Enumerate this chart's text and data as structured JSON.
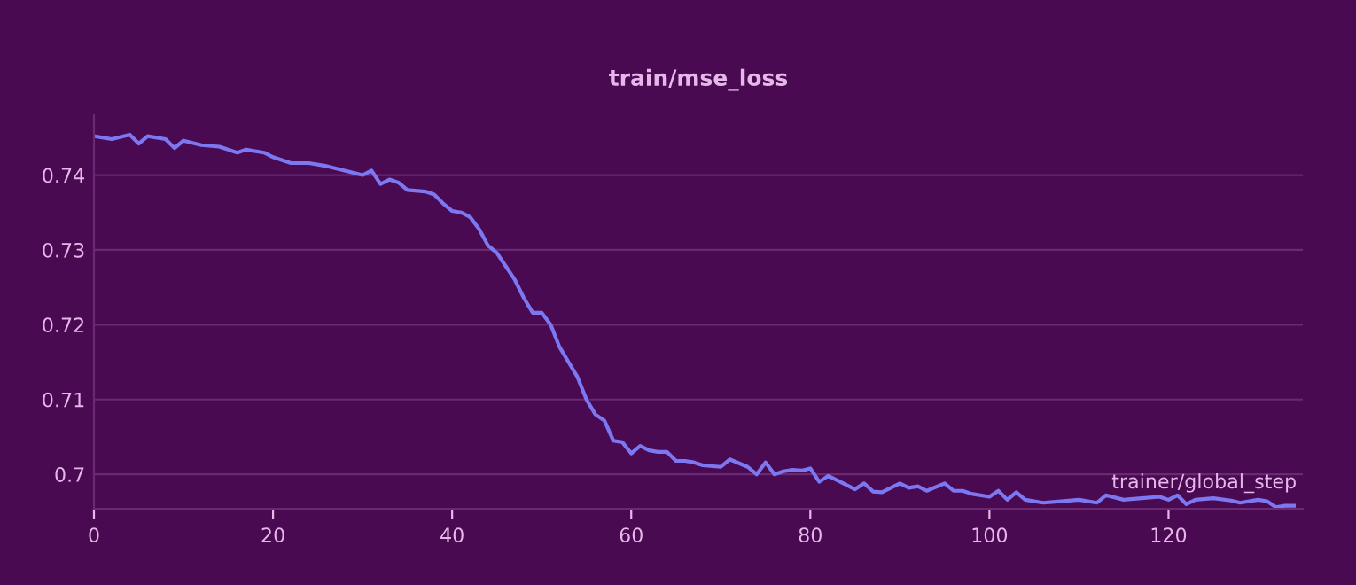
{
  "chart_data": {
    "type": "line",
    "title": "train/mse_loss",
    "xlabel": "trainer/global_step",
    "series": [
      {
        "color": "#7c78f2",
        "x": [
          0,
          2,
          4,
          5,
          6,
          8,
          9,
          10,
          12,
          14,
          16,
          17,
          19,
          20,
          22,
          24,
          26,
          28,
          30,
          31,
          32,
          33,
          34,
          35,
          37,
          38,
          39,
          40,
          41,
          42,
          43,
          44,
          45,
          46,
          47,
          48,
          49,
          50,
          51,
          52,
          53,
          54,
          55,
          56,
          57,
          58,
          59,
          60,
          61,
          62,
          63,
          64,
          65,
          66,
          67,
          68,
          70,
          71,
          73,
          74,
          75,
          76,
          77,
          78,
          79,
          80,
          81,
          82,
          83,
          85,
          86,
          87,
          88,
          90,
          91,
          92,
          93,
          95,
          96,
          97,
          98,
          100,
          101,
          102,
          103,
          104,
          106,
          108,
          110,
          112,
          113,
          115,
          117,
          119,
          120,
          121,
          122,
          123,
          125,
          127,
          128,
          130,
          131,
          132,
          133,
          134
        ],
        "values": [
          0.7452,
          0.7448,
          0.7454,
          0.7442,
          0.7452,
          0.7448,
          0.7436,
          0.7446,
          0.744,
          0.7438,
          0.743,
          0.7434,
          0.743,
          0.7424,
          0.7416,
          0.7416,
          0.7412,
          0.7406,
          0.74,
          0.7406,
          0.7388,
          0.7394,
          0.739,
          0.738,
          0.7378,
          0.7374,
          0.7362,
          0.7352,
          0.735,
          0.7344,
          0.7328,
          0.7306,
          0.7296,
          0.7278,
          0.726,
          0.7236,
          0.7216,
          0.7216,
          0.72,
          0.717,
          0.715,
          0.713,
          0.71,
          0.708,
          0.7072,
          0.7045,
          0.7043,
          0.7028,
          0.7038,
          0.7032,
          0.703,
          0.703,
          0.7018,
          0.7018,
          0.7016,
          0.7012,
          0.701,
          0.702,
          0.701,
          0.7,
          0.7016,
          0.7,
          0.7004,
          0.7006,
          0.7005,
          0.7008,
          0.699,
          0.6998,
          0.6992,
          0.698,
          0.6988,
          0.6977,
          0.6976,
          0.6988,
          0.6982,
          0.6984,
          0.6978,
          0.6988,
          0.6978,
          0.6978,
          0.6974,
          0.697,
          0.6978,
          0.6966,
          0.6976,
          0.6966,
          0.6962,
          0.6964,
          0.6966,
          0.6962,
          0.6972,
          0.6966,
          0.6968,
          0.697,
          0.6966,
          0.6972,
          0.696,
          0.6966,
          0.6968,
          0.6965,
          0.6962,
          0.6966,
          0.6964,
          0.6956,
          0.6958,
          0.6958
        ]
      }
    ],
    "xlim": [
      0,
      135
    ],
    "ylim": [
      0.6954,
      0.748
    ],
    "xticks": [
      0,
      20,
      40,
      60,
      80,
      100,
      120
    ],
    "yticks": [
      {
        "value": 0.7,
        "label": "0.7"
      },
      0.71,
      0.72,
      0.73,
      0.74
    ],
    "grid": "y",
    "legend": false,
    "marker": "none",
    "line_style": "solid"
  }
}
